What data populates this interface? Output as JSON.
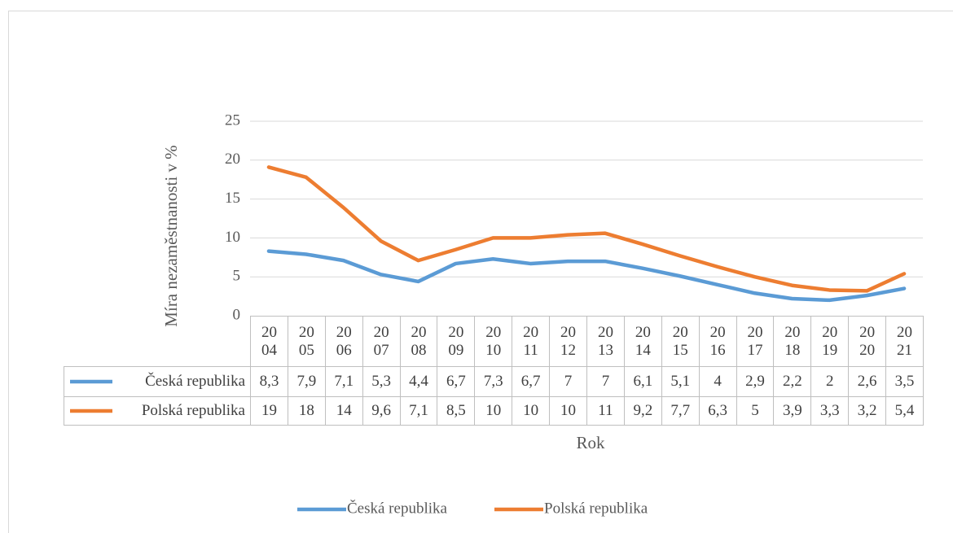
{
  "chart_data": {
    "type": "line",
    "y_axis_label": "Míra nezaměstnanosti v %",
    "x_axis_label": "Rok",
    "categories": [
      "2004",
      "2005",
      "2006",
      "2007",
      "2008",
      "2009",
      "2010",
      "2011",
      "2012",
      "2013",
      "2014",
      "2015",
      "2016",
      "2017",
      "2018",
      "2019",
      "2020",
      "2021"
    ],
    "series": [
      {
        "name": "Česká republika",
        "color": "#5b9bd5",
        "values": [
          8.3,
          7.9,
          7.1,
          5.3,
          4.4,
          6.7,
          7.3,
          6.7,
          7,
          7,
          6.1,
          5.1,
          4,
          2.9,
          2.2,
          2,
          2.6,
          3.5
        ],
        "value_labels": [
          "8,3",
          "7,9",
          "7,1",
          "5,3",
          "4,4",
          "6,7",
          "7,3",
          "6,7",
          "7",
          "7",
          "6,1",
          "5,1",
          "4",
          "2,9",
          "2,2",
          "2",
          "2,6",
          "3,5"
        ]
      },
      {
        "name": "Polská republika",
        "color": "#ed7d31",
        "values": [
          19.1,
          17.8,
          13.9,
          9.6,
          7.1,
          8.5,
          10,
          10,
          10.4,
          10.6,
          9.2,
          7.7,
          6.3,
          5,
          3.9,
          3.3,
          3.2,
          5.4
        ],
        "value_labels": [
          "19",
          "18",
          "14",
          "9,6",
          "7,1",
          "8,5",
          "10",
          "10",
          "10",
          "11",
          "9,2",
          "7,7",
          "6,3",
          "5",
          "3,9",
          "3,3",
          "3,2",
          "5,4"
        ]
      }
    ],
    "ylim": [
      0,
      25
    ],
    "yticks": [
      0,
      5,
      10,
      15,
      20,
      25
    ],
    "grid": true,
    "legend": "bottom"
  }
}
